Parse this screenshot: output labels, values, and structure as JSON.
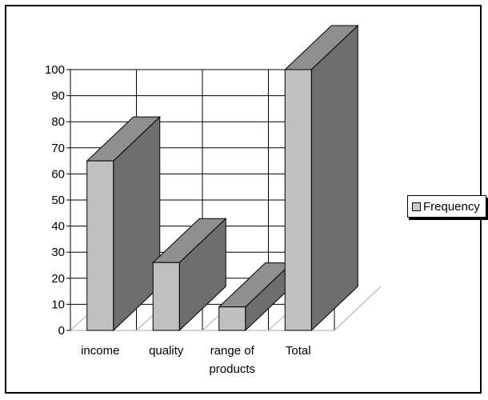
{
  "chart_data": {
    "type": "bar",
    "style": "3d-column",
    "categories": [
      "income",
      "quality",
      "range of\nproducts",
      "Total"
    ],
    "series": [
      {
        "name": "Frequency",
        "values": [
          65,
          26,
          9,
          100
        ]
      }
    ],
    "ylim": [
      0,
      100
    ],
    "yticks": [
      0,
      10,
      20,
      30,
      40,
      50,
      60,
      70,
      80,
      90,
      100
    ],
    "grid": true,
    "legend": "right",
    "colors": {
      "front": "#c0c0c0",
      "side": "#6e6e6e",
      "top": "#8f8f8f"
    }
  },
  "legend": {
    "label": "Frequency"
  }
}
